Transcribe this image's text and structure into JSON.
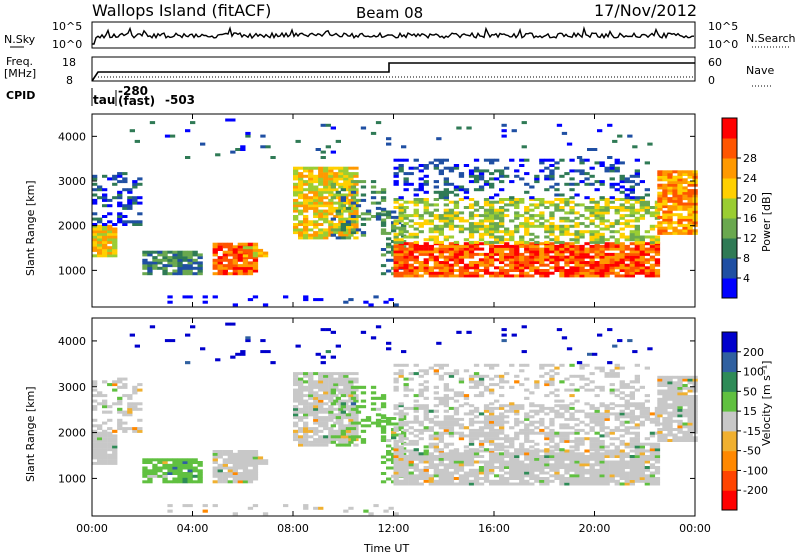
{
  "header": {
    "station": "Wallops Island (fitACF)",
    "beam": "Beam 08",
    "date": "17/Nov/2012"
  },
  "top_panels": {
    "nsky_label": "N.Sky",
    "nsearch_label": "N.Search",
    "nsky_ticks": [
      "10^5",
      "10^0"
    ],
    "nsky_right_ticks": [
      "10^5",
      "10^0"
    ],
    "freq_label": "Freq.",
    "freq_unit": "[MHz]",
    "freq_ticks": [
      "18",
      "8"
    ],
    "nave_label": "Nave",
    "nave_ticks": [
      "60",
      "0"
    ],
    "cpid_label": "CPID",
    "cpid_annotations": [
      "tau",
      "-280",
      "(fast)",
      "-503"
    ]
  },
  "colors": {
    "power": [
      "#0000ff",
      "#1f4fa3",
      "#2f7a55",
      "#6aa84f",
      "#9acd32",
      "#ffd000",
      "#ff9900",
      "#ff5500",
      "#ff0000"
    ],
    "velocity": [
      "#0000cc",
      "#3060a0",
      "#2e8b57",
      "#60c040",
      "#c8c8c8",
      "#f0b030",
      "#ff8800",
      "#ff4400",
      "#ff0000"
    ],
    "gray": "#c8c8c8"
  },
  "chart_data": [
    {
      "type": "heatmap",
      "panel": "power",
      "ylabel": "Slant Range [km]",
      "yticks": [
        "1000",
        "2000",
        "3000",
        "4000"
      ],
      "ylim": [
        180,
        4500
      ],
      "xlim": [
        0,
        24
      ],
      "colorbar": {
        "label": "Power [dB]",
        "ticks": [
          "4",
          "8",
          "12",
          "16",
          "20",
          "24",
          "28"
        ],
        "range": [
          0,
          32
        ]
      }
    },
    {
      "type": "heatmap",
      "panel": "velocity",
      "ylabel": "Slant Range [km]",
      "yticks": [
        "1000",
        "2000",
        "3000",
        "4000"
      ],
      "ylim": [
        180,
        4500
      ],
      "xlim": [
        0,
        24
      ],
      "xlabel": "Time UT",
      "xticks": [
        "00:00",
        "04:00",
        "08:00",
        "12:00",
        "16:00",
        "20:00",
        "00:00"
      ],
      "colorbar": {
        "label": "Velocity [m s⁻¹]",
        "ticks": [
          "200",
          "100",
          "50",
          "15",
          "-15",
          "-50",
          "-100",
          "-200"
        ]
      }
    }
  ]
}
